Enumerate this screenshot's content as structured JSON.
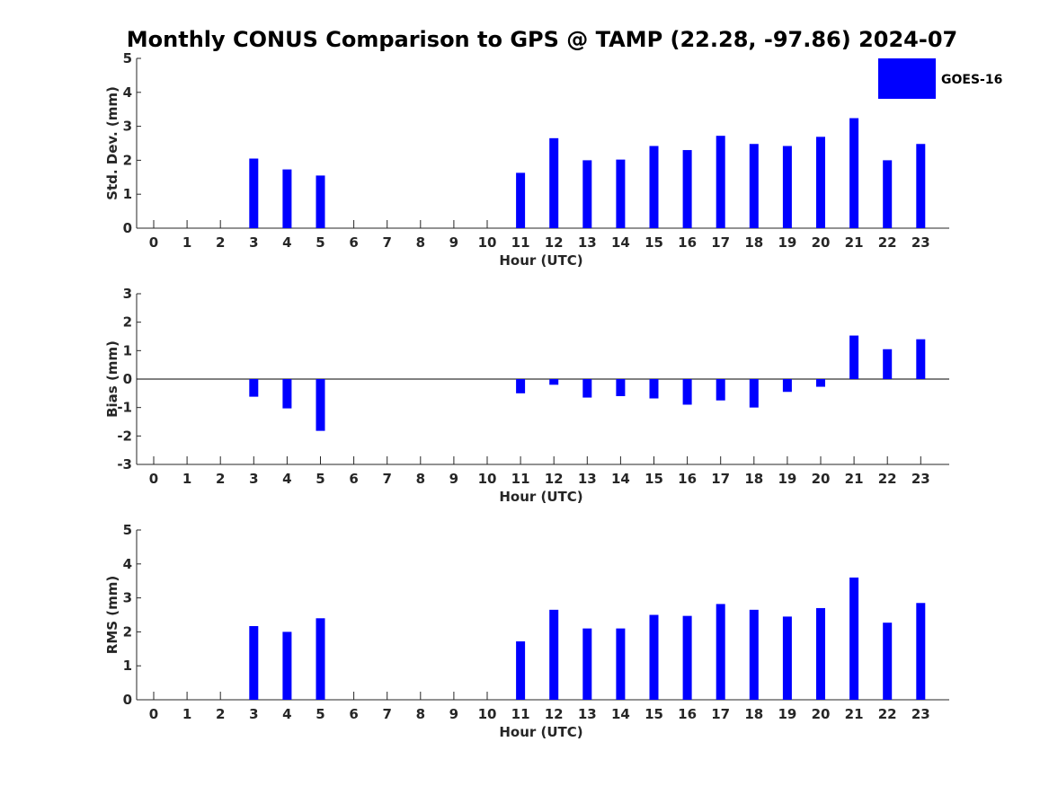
{
  "title": "Monthly CONUS Comparison to GPS @ TAMP (22.28, -97.86) 2024-07",
  "legend": {
    "label": "GOES-16",
    "color": "#0000ff"
  },
  "chart_data": [
    {
      "type": "bar",
      "id": "std",
      "title": "",
      "xlabel": "Hour (UTC)",
      "ylabel": "Std. Dev. (mm)",
      "ylim": [
        0,
        5
      ],
      "yticks": [
        0,
        1,
        2,
        3,
        4,
        5
      ],
      "categories": [
        "0",
        "1",
        "2",
        "3",
        "4",
        "5",
        "6",
        "7",
        "8",
        "9",
        "10",
        "11",
        "12",
        "13",
        "14",
        "15",
        "16",
        "17",
        "18",
        "19",
        "20",
        "21",
        "22",
        "23"
      ],
      "series": [
        {
          "name": "GOES-16",
          "values": [
            0,
            0,
            0,
            2.05,
            1.73,
            1.55,
            0,
            0,
            0,
            0,
            0,
            1.63,
            2.65,
            2.0,
            2.02,
            2.42,
            2.3,
            2.72,
            2.48,
            2.42,
            2.69,
            3.24,
            2.0,
            2.48
          ]
        }
      ]
    },
    {
      "type": "bar",
      "id": "bias",
      "title": "",
      "xlabel": "Hour (UTC)",
      "ylabel": "Bias (mm)",
      "ylim": [
        -3,
        3
      ],
      "yticks": [
        -3,
        -2,
        -1,
        0,
        1,
        2,
        3
      ],
      "categories": [
        "0",
        "1",
        "2",
        "3",
        "4",
        "5",
        "6",
        "7",
        "8",
        "9",
        "10",
        "11",
        "12",
        "13",
        "14",
        "15",
        "16",
        "17",
        "18",
        "19",
        "20",
        "21",
        "22",
        "23"
      ],
      "series": [
        {
          "name": "GOES-16",
          "values": [
            0,
            0,
            0,
            -0.62,
            -1.03,
            -1.82,
            0,
            0,
            0,
            0,
            0,
            -0.5,
            -0.2,
            -0.65,
            -0.6,
            -0.68,
            -0.9,
            -0.75,
            -1.0,
            -0.45,
            -0.27,
            1.53,
            1.05,
            1.4
          ]
        }
      ]
    },
    {
      "type": "bar",
      "id": "rms",
      "title": "",
      "xlabel": "Hour (UTC)",
      "ylabel": "RMS (mm)",
      "ylim": [
        0,
        5
      ],
      "yticks": [
        0,
        1,
        2,
        3,
        4,
        5
      ],
      "categories": [
        "0",
        "1",
        "2",
        "3",
        "4",
        "5",
        "6",
        "7",
        "8",
        "9",
        "10",
        "11",
        "12",
        "13",
        "14",
        "15",
        "16",
        "17",
        "18",
        "19",
        "20",
        "21",
        "22",
        "23"
      ],
      "series": [
        {
          "name": "GOES-16",
          "values": [
            0,
            0,
            0,
            2.17,
            2.0,
            2.4,
            0,
            0,
            0,
            0,
            0,
            1.72,
            2.65,
            2.1,
            2.1,
            2.5,
            2.47,
            2.82,
            2.65,
            2.45,
            2.7,
            3.6,
            2.27,
            2.85
          ]
        }
      ]
    }
  ]
}
